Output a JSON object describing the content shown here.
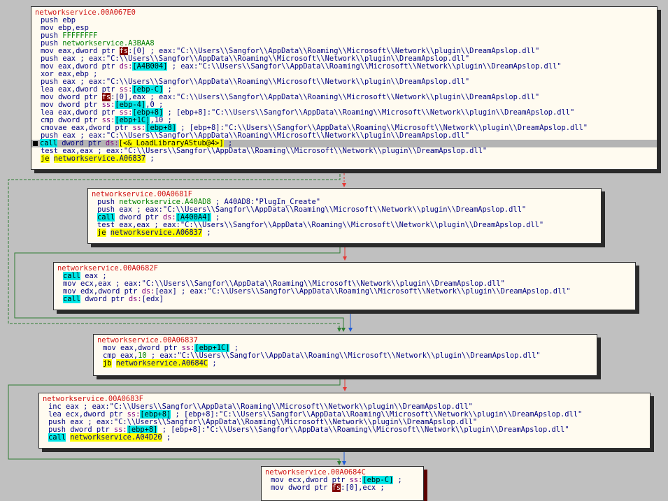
{
  "blocks": [
    {
      "id": "b0",
      "title": "networkservice.00A067E0",
      "lines": [
        [
          {
            "t": "push",
            "c": "m"
          },
          {
            "t": " "
          },
          {
            "t": "ebp",
            "c": "op"
          }
        ],
        [
          {
            "t": "mov",
            "c": "m"
          },
          {
            "t": " "
          },
          {
            "t": "ebp,esp",
            "c": "op"
          }
        ],
        [
          {
            "t": "push",
            "c": "m"
          },
          {
            "t": " "
          },
          {
            "t": "FFFFFFFF",
            "c": "num"
          }
        ],
        [
          {
            "t": "push",
            "c": "m"
          },
          {
            "t": " "
          },
          {
            "t": "networkservice.A3BAA8",
            "c": "addr"
          }
        ],
        [
          {
            "t": "mov",
            "c": "m"
          },
          {
            "t": " "
          },
          {
            "t": "eax,dword ptr ",
            "c": "op"
          },
          {
            "t": "fs",
            "c": "rb"
          },
          {
            "t": ":",
            "c": "op"
          },
          {
            "t": "[0]",
            "c": "op"
          },
          {
            "t": " ; eax:\"C:\\\\Users\\\\Sangfor\\\\AppData\\\\Roaming\\\\Microsoft\\\\Network\\\\plugin\\\\DreamApslop.dll\"",
            "c": "cm"
          }
        ],
        [
          {
            "t": "push",
            "c": "m"
          },
          {
            "t": " "
          },
          {
            "t": "eax",
            "c": "op"
          },
          {
            "t": " ; eax:\"C:\\\\Users\\\\Sangfor\\\\AppData\\\\Roaming\\\\Microsoft\\\\Network\\\\plugin\\\\DreamApslop.dll\"",
            "c": "cm"
          }
        ],
        [
          {
            "t": "mov",
            "c": "m"
          },
          {
            "t": " "
          },
          {
            "t": "eax,dword ptr ",
            "c": "op"
          },
          {
            "t": "ds:",
            "c": "seg"
          },
          {
            "t": "[A4B004]",
            "c": "bx"
          },
          {
            "t": " ; eax:\"C:\\\\Users\\\\Sangfor\\\\AppData\\\\Roaming\\\\Microsoft\\\\Network\\\\plugin\\\\DreamApslop.dll\"",
            "c": "cm"
          }
        ],
        [
          {
            "t": "xor",
            "c": "m"
          },
          {
            "t": " "
          },
          {
            "t": "eax,ebp",
            "c": "op"
          },
          {
            "t": " ;",
            "c": "cm"
          }
        ],
        [
          {
            "t": "push",
            "c": "m"
          },
          {
            "t": " "
          },
          {
            "t": "eax",
            "c": "op"
          },
          {
            "t": " ; eax:\"C:\\\\Users\\\\Sangfor\\\\AppData\\\\Roaming\\\\Microsoft\\\\Network\\\\plugin\\\\DreamApslop.dll\"",
            "c": "cm"
          }
        ],
        [
          {
            "t": "lea",
            "c": "m"
          },
          {
            "t": " "
          },
          {
            "t": "eax,dword ptr ",
            "c": "op"
          },
          {
            "t": "ss:",
            "c": "seg"
          },
          {
            "t": "[ebp-C]",
            "c": "bx"
          },
          {
            "t": " ;",
            "c": "cm"
          }
        ],
        [
          {
            "t": "mov",
            "c": "m"
          },
          {
            "t": " "
          },
          {
            "t": "dword ptr ",
            "c": "op"
          },
          {
            "t": "fs",
            "c": "rb"
          },
          {
            "t": ":[0],eax",
            "c": "op"
          },
          {
            "t": " ; eax:\"C:\\\\Users\\\\Sangfor\\\\AppData\\\\Roaming\\\\Microsoft\\\\Network\\\\plugin\\\\DreamApslop.dll\"",
            "c": "cm"
          }
        ],
        [
          {
            "t": "mov",
            "c": "m"
          },
          {
            "t": " "
          },
          {
            "t": "dword ptr ",
            "c": "op"
          },
          {
            "t": "ss:",
            "c": "seg"
          },
          {
            "t": "[ebp-4]",
            "c": "bx"
          },
          {
            "t": ",0",
            "c": "op"
          },
          {
            "t": " ;",
            "c": "cm"
          }
        ],
        [
          {
            "t": "lea",
            "c": "m"
          },
          {
            "t": " "
          },
          {
            "t": "eax,dword ptr ",
            "c": "op"
          },
          {
            "t": "ss:",
            "c": "seg"
          },
          {
            "t": "[ebp+8]",
            "c": "bx"
          },
          {
            "t": " ; [ebp+8]:\"C:\\\\Users\\\\Sangfor\\\\AppData\\\\Roaming\\\\Microsoft\\\\Network\\\\plugin\\\\DreamApslop.dll\"",
            "c": "cm"
          }
        ],
        [
          {
            "t": "cmp",
            "c": "m"
          },
          {
            "t": " "
          },
          {
            "t": "dword ptr ",
            "c": "op"
          },
          {
            "t": "ss:",
            "c": "seg"
          },
          {
            "t": "[ebp+1C]",
            "c": "bx"
          },
          {
            "t": ",10",
            "c": "op"
          },
          {
            "t": " ;",
            "c": "cm"
          }
        ],
        [
          {
            "t": "cmovae",
            "c": "m"
          },
          {
            "t": " "
          },
          {
            "t": "eax,dword ptr ",
            "c": "op"
          },
          {
            "t": "ss:",
            "c": "seg"
          },
          {
            "t": "[ebp+8]",
            "c": "bx"
          },
          {
            "t": " ; [ebp+8]:\"C:\\\\Users\\\\Sangfor\\\\AppData\\\\Roaming\\\\Microsoft\\\\Network\\\\plugin\\\\DreamApslop.dll\"",
            "c": "cm"
          }
        ],
        [
          {
            "t": "push",
            "c": "m"
          },
          {
            "t": " "
          },
          {
            "t": "eax",
            "c": "op"
          },
          {
            "t": " ; eax:\"C:\\\\Users\\\\Sangfor\\\\AppData\\\\Roaming\\\\Microsoft\\\\Network\\\\plugin\\\\DreamApslop.dll\"",
            "c": "cm"
          }
        ],
        [
          {
            "t": "call",
            "c": "m call"
          },
          {
            "t": " "
          },
          {
            "t": "dword ptr ",
            "c": "op"
          },
          {
            "t": "ds:",
            "c": "seg"
          },
          {
            "t": "[<&_LoadLibraryAStub@4>]",
            "c": "yb"
          },
          {
            "t": " ;",
            "c": "cm"
          }
        ],
        [
          {
            "t": "test",
            "c": "m"
          },
          {
            "t": " "
          },
          {
            "t": "eax,eax",
            "c": "op"
          },
          {
            "t": " ; eax:\"C:\\\\Users\\\\Sangfor\\\\AppData\\\\Roaming\\\\Microsoft\\\\Network\\\\plugin\\\\DreamApslop.dll\"",
            "c": "cm"
          }
        ],
        [
          {
            "t": "je",
            "c": "m jcc"
          },
          {
            "t": " "
          },
          {
            "t": "networkservice.A06837",
            "c": "lbl hl"
          },
          {
            "t": " ;",
            "c": "cm"
          }
        ]
      ]
    },
    {
      "id": "b1",
      "title": "networkservice.00A0681F",
      "lines": [
        [
          {
            "t": "push",
            "c": "m"
          },
          {
            "t": " "
          },
          {
            "t": "networkservice.A40AD8",
            "c": "addr"
          },
          {
            "t": " ; A40AD8:\"PlugIn_Create\"",
            "c": "cm"
          }
        ],
        [
          {
            "t": "push",
            "c": "m"
          },
          {
            "t": " "
          },
          {
            "t": "eax",
            "c": "op"
          },
          {
            "t": " ; eax:\"C:\\\\Users\\\\Sangfor\\\\AppData\\\\Roaming\\\\Microsoft\\\\Network\\\\plugin\\\\DreamApslop.dll\"",
            "c": "cm"
          }
        ],
        [
          {
            "t": "call",
            "c": "m call"
          },
          {
            "t": " "
          },
          {
            "t": "dword ptr ",
            "c": "op"
          },
          {
            "t": "ds:",
            "c": "seg"
          },
          {
            "t": "[A400A4]",
            "c": "bx"
          },
          {
            "t": " ;",
            "c": "cm"
          }
        ],
        [
          {
            "t": "test",
            "c": "m"
          },
          {
            "t": " "
          },
          {
            "t": "eax,eax",
            "c": "op"
          },
          {
            "t": " ; eax:\"C:\\\\Users\\\\Sangfor\\\\AppData\\\\Roaming\\\\Microsoft\\\\Network\\\\plugin\\\\DreamApslop.dll\"",
            "c": "cm"
          }
        ],
        [
          {
            "t": "je",
            "c": "m jcc"
          },
          {
            "t": " "
          },
          {
            "t": "networkservice.A06837",
            "c": "lbl hl"
          },
          {
            "t": " ;",
            "c": "cm"
          }
        ]
      ]
    },
    {
      "id": "b2",
      "title": "networkservice.00A0682F",
      "lines": [
        [
          {
            "t": "call",
            "c": "m call"
          },
          {
            "t": " "
          },
          {
            "t": "eax",
            "c": "op"
          },
          {
            "t": " ;",
            "c": "cm"
          }
        ],
        [
          {
            "t": "mov",
            "c": "m"
          },
          {
            "t": " "
          },
          {
            "t": "ecx,eax",
            "c": "op"
          },
          {
            "t": " ; eax:\"C:\\\\Users\\\\Sangfor\\\\AppData\\\\Roaming\\\\Microsoft\\\\Network\\\\plugin\\\\DreamApslop.dll\"",
            "c": "cm"
          }
        ],
        [
          {
            "t": "mov",
            "c": "m"
          },
          {
            "t": " "
          },
          {
            "t": "edx,dword ptr ",
            "c": "op"
          },
          {
            "t": "ds:",
            "c": "seg"
          },
          {
            "t": "[eax]",
            "c": "op"
          },
          {
            "t": " ; eax:\"C:\\\\Users\\\\Sangfor\\\\AppData\\\\Roaming\\\\Microsoft\\\\Network\\\\plugin\\\\DreamApslop.dll\"",
            "c": "cm"
          }
        ],
        [
          {
            "t": "call",
            "c": "m call"
          },
          {
            "t": " "
          },
          {
            "t": "dword ptr ",
            "c": "op"
          },
          {
            "t": "ds:",
            "c": "seg"
          },
          {
            "t": "[edx]",
            "c": "op"
          }
        ]
      ]
    },
    {
      "id": "b3",
      "title": "networkservice.00A06837",
      "lines": [
        [
          {
            "t": "mov",
            "c": "m"
          },
          {
            "t": " "
          },
          {
            "t": "eax,dword ptr ",
            "c": "op"
          },
          {
            "t": "ss:",
            "c": "seg"
          },
          {
            "t": "[ebp+1C]",
            "c": "bx"
          },
          {
            "t": " ;",
            "c": "cm"
          }
        ],
        [
          {
            "t": "cmp",
            "c": "m"
          },
          {
            "t": " "
          },
          {
            "t": "eax,",
            "c": "op"
          },
          {
            "t": "10",
            "c": "num"
          },
          {
            "t": " ; eax:\"C:\\\\Users\\\\Sangfor\\\\AppData\\\\Roaming\\\\Microsoft\\\\Network\\\\plugin\\\\DreamApslop.dll\"",
            "c": "cm"
          }
        ],
        [
          {
            "t": "jb",
            "c": "m jcc"
          },
          {
            "t": " "
          },
          {
            "t": "networkservice.A0684C",
            "c": "lbl hl"
          },
          {
            "t": " ;",
            "c": "cm"
          }
        ]
      ]
    },
    {
      "id": "b4",
      "title": "networkservice.00A0683F",
      "lines": [
        [
          {
            "t": "inc",
            "c": "m"
          },
          {
            "t": " "
          },
          {
            "t": "eax",
            "c": "op"
          },
          {
            "t": " ; eax:\"C:\\\\Users\\\\Sangfor\\\\AppData\\\\Roaming\\\\Microsoft\\\\Network\\\\plugin\\\\DreamApslop.dll\"",
            "c": "cm"
          }
        ],
        [
          {
            "t": "lea",
            "c": "m"
          },
          {
            "t": " "
          },
          {
            "t": "ecx,dword ptr ",
            "c": "op"
          },
          {
            "t": "ss:",
            "c": "seg"
          },
          {
            "t": "[ebp+8]",
            "c": "bx"
          },
          {
            "t": " ; [ebp+8]:\"C:\\\\Users\\\\Sangfor\\\\AppData\\\\Roaming\\\\Microsoft\\\\Network\\\\plugin\\\\DreamApslop.dll\"",
            "c": "cm"
          }
        ],
        [
          {
            "t": "push",
            "c": "m"
          },
          {
            "t": " "
          },
          {
            "t": "eax",
            "c": "op"
          },
          {
            "t": " ; eax:\"C:\\\\Users\\\\Sangfor\\\\AppData\\\\Roaming\\\\Microsoft\\\\Network\\\\plugin\\\\DreamApslop.dll\"",
            "c": "cm"
          }
        ],
        [
          {
            "t": "push",
            "c": "m"
          },
          {
            "t": " "
          },
          {
            "t": "dword ptr ",
            "c": "op"
          },
          {
            "t": "ss:",
            "c": "seg"
          },
          {
            "t": "[ebp+8]",
            "c": "bx"
          },
          {
            "t": " ; [ebp+8]:\"C:\\\\Users\\\\Sangfor\\\\AppData\\\\Roaming\\\\Microsoft\\\\Network\\\\plugin\\\\DreamApslop.dll\"",
            "c": "cm"
          }
        ],
        [
          {
            "t": "call",
            "c": "m call"
          },
          {
            "t": " "
          },
          {
            "t": "networkservice.A04D20",
            "c": "lbl hl"
          },
          {
            "t": " ;",
            "c": "cm"
          }
        ]
      ]
    },
    {
      "id": "b5",
      "title": "networkservice.00A0684C",
      "lines": [
        [
          {
            "t": "mov",
            "c": "m"
          },
          {
            "t": " "
          },
          {
            "t": "ecx,dword ptr ",
            "c": "op"
          },
          {
            "t": "ss:",
            "c": "seg"
          },
          {
            "t": "[ebp-C]",
            "c": "bx"
          },
          {
            "t": " ;",
            "c": "cm"
          }
        ],
        [
          {
            "t": "mov",
            "c": "m"
          },
          {
            "t": " "
          },
          {
            "t": "dword ptr ",
            "c": "op"
          },
          {
            "t": "fs",
            "c": "rb"
          },
          {
            "t": ":[0],ecx",
            "c": "op"
          },
          {
            "t": " ;",
            "c": "cm"
          }
        ]
      ]
    }
  ],
  "selected_line": {
    "block": "b0",
    "index": 16
  },
  "colors": {
    "edge_true": "#2e7d32",
    "edge_false": "#e53935",
    "edge_uncond": "#1e5bd6",
    "background": "#c0c0c0",
    "block_bg": "#fffbf0"
  }
}
